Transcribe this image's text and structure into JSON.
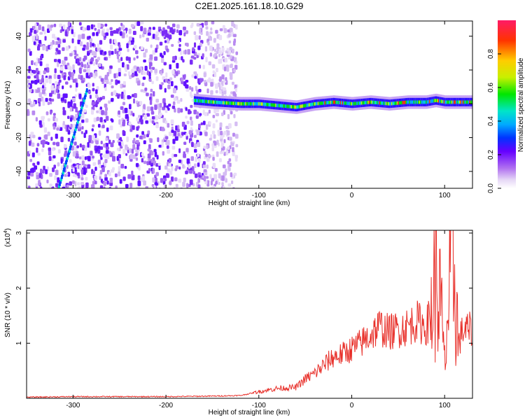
{
  "title": "C2E1.2025.161.18.10.G29",
  "chart_data": [
    {
      "type": "heatmap",
      "xlabel": "Height of straight line (km)",
      "ylabel": "Frequency (Hz)",
      "xlim": [
        -350,
        130
      ],
      "ylim": [
        -50,
        49
      ],
      "x_ticks": [
        -300,
        -200,
        -100,
        0,
        100
      ],
      "y_ticks": [
        -40,
        -20,
        0,
        20,
        40
      ],
      "colorbar": {
        "label": "Normalized spectral amplitude",
        "range": [
          0,
          1
        ],
        "ticks": [
          "0.0",
          "0.2",
          "0.4",
          "0.6",
          "0.8"
        ],
        "colormap": [
          "#ffffff",
          "#e6d8f6",
          "#b070f0",
          "#6600ff",
          "#0033ff",
          "#00aaff",
          "#00e5c8",
          "#00e600",
          "#c8f000",
          "#ffcc00",
          "#ff3300",
          "#ff1a66"
        ]
      },
      "features": {
        "carrier_line": {
          "x": [
            -170,
            -150,
            -120,
            -100,
            -80,
            -60,
            -40,
            -20,
            0,
            20,
            40,
            60,
            80,
            90,
            100,
            110,
            130
          ],
          "y": [
            2,
            1,
            0,
            0,
            -1,
            -2,
            0,
            1,
            0,
            1,
            0,
            1,
            1,
            2,
            1,
            1,
            1
          ]
        },
        "doppler_trace": {
          "x": [
            -315,
            -285
          ],
          "y": [
            -49,
            8
          ]
        },
        "noise_region_xmax": -125
      }
    },
    {
      "type": "line",
      "xlabel": "Height of straight line (km)",
      "ylabel": "SNR (10 * v/v)",
      "multiplier_label": "(x10",
      "multiplier_exp": "4",
      "xlim": [
        -350,
        130
      ],
      "ylim": [
        0,
        3.05
      ],
      "x_ticks": [
        -300,
        -200,
        -100,
        0,
        100
      ],
      "y_ticks": [
        1,
        2,
        3
      ],
      "series": [
        {
          "color": "#e8302a",
          "x": [
            -350,
            -300,
            -200,
            -150,
            -120,
            -100,
            -80,
            -60,
            -50,
            -40,
            -30,
            -20,
            -10,
            0,
            10,
            20,
            30,
            40,
            50,
            60,
            70,
            80,
            85,
            90,
            95,
            100,
            105,
            110,
            115,
            120,
            130
          ],
          "y": [
            0.02,
            0.03,
            0.03,
            0.04,
            0.05,
            0.12,
            0.18,
            0.2,
            0.35,
            0.45,
            0.6,
            0.75,
            0.8,
            0.9,
            1.0,
            1.15,
            1.3,
            1.2,
            1.25,
            1.3,
            1.4,
            1.3,
            1.5,
            2.2,
            1.8,
            0.6,
            1.9,
            2.4,
            1.0,
            1.25,
            1.22
          ]
        }
      ]
    }
  ]
}
